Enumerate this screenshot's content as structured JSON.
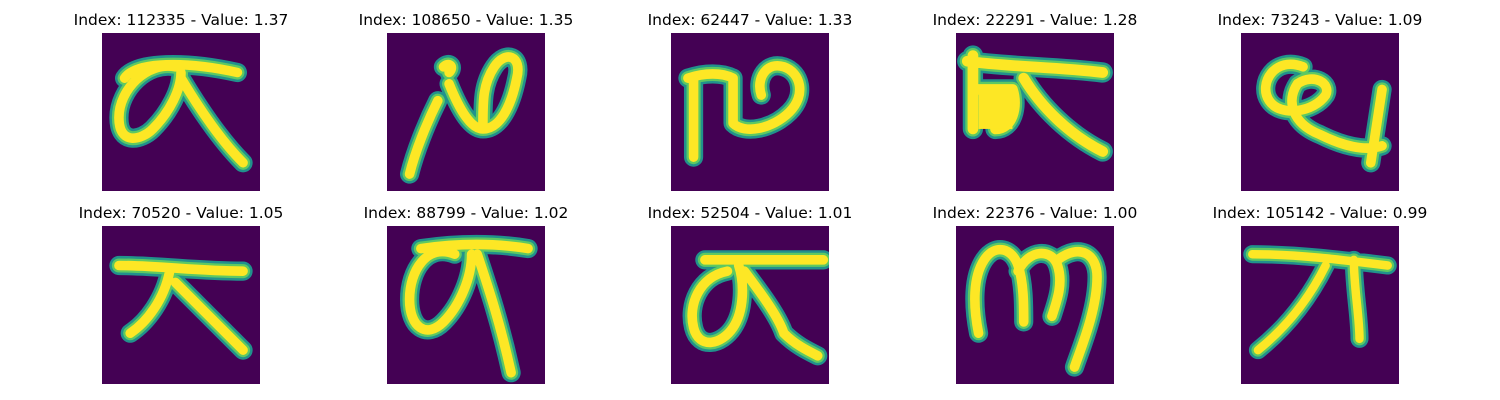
{
  "panels": [
    {
      "title": "Index: 112335 - Value: 1.37"
    },
    {
      "title": "Index: 108650 - Value: 1.35"
    },
    {
      "title": "Index: 62447 - Value: 1.33"
    },
    {
      "title": "Index: 22291 - Value: 1.28"
    },
    {
      "title": "Index: 73243 - Value: 1.09"
    },
    {
      "title": "Index: 70520 - Value: 1.05"
    },
    {
      "title": "Index: 88799 - Value: 1.02"
    },
    {
      "title": "Index: 52504 - Value: 1.01"
    },
    {
      "title": "Index: 22376 - Value: 1.00"
    },
    {
      "title": "Index: 105142 - Value: 0.99"
    }
  ],
  "colors": {
    "background": "#440154",
    "edge": "#21918c",
    "mid": "#5ec962",
    "stroke": "#fde725"
  }
}
